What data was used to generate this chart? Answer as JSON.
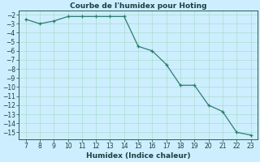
{
  "x": [
    7,
    8,
    9,
    10,
    11,
    12,
    13,
    14,
    15,
    16,
    17,
    18,
    19,
    20,
    21,
    22,
    23
  ],
  "y": [
    -2.5,
    -3,
    -2.7,
    -2.2,
    -2.2,
    -2.2,
    -2.2,
    -2.2,
    -5.5,
    -6,
    -7.5,
    -9.8,
    -9.8,
    -12,
    -12.7,
    -15,
    -15.3
  ],
  "line_color": "#2e7d6e",
  "marker": "+",
  "marker_color": "#2e7d6e",
  "bg_color": "#cceeff",
  "grid_color": "#aaddcc",
  "title": "Courbe de l'humidex pour Hoting",
  "xlabel": "Humidex (Indice chaleur)",
  "xlim": [
    6.5,
    23.5
  ],
  "ylim": [
    -15.8,
    -1.5
  ],
  "xticks": [
    7,
    8,
    9,
    10,
    11,
    12,
    13,
    14,
    15,
    16,
    17,
    18,
    19,
    20,
    21,
    22,
    23
  ],
  "yticks": [
    -2,
    -3,
    -4,
    -5,
    -6,
    -7,
    -8,
    -9,
    -10,
    -11,
    -12,
    -13,
    -14,
    -15
  ],
  "title_fontsize": 6.5,
  "tick_fontsize": 5.5,
  "xlabel_fontsize": 6.5,
  "line_color_hex": "#2d7a6a",
  "spine_color": "#2d5a5a",
  "text_color": "#1a4040"
}
